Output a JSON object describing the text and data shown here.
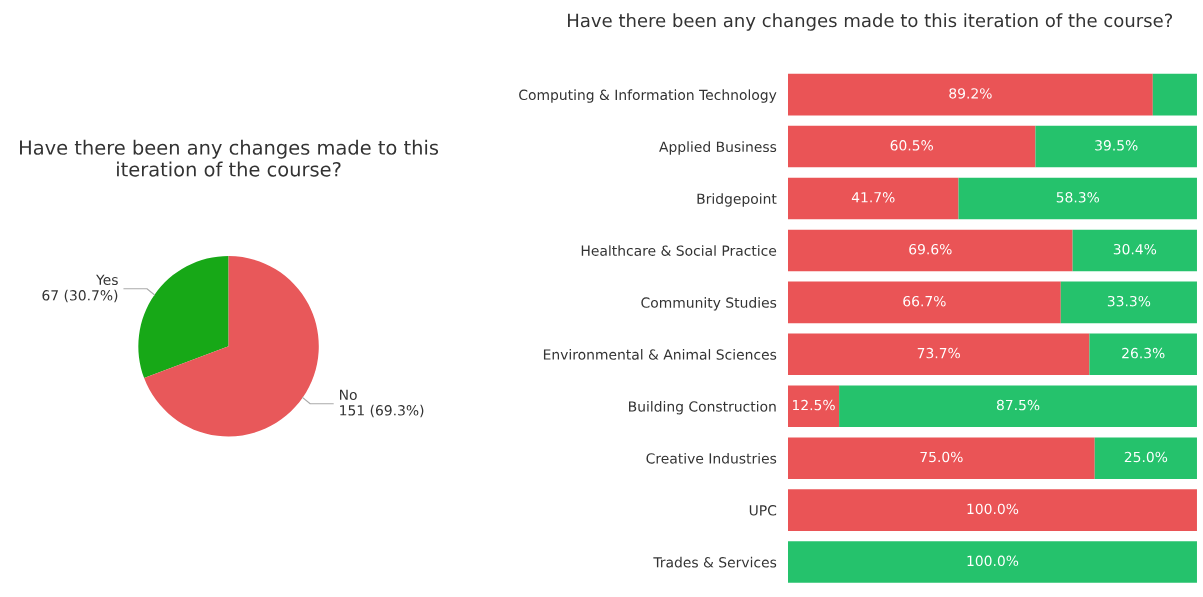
{
  "chart_data": [
    {
      "type": "pie",
      "title": "Have there been any changes made to this iteration of the course?",
      "categories": [
        "Yes",
        "No"
      ],
      "values": [
        67,
        151
      ],
      "colors": [
        "#17a817",
        "#e8585a"
      ],
      "value_labels": [
        "67 (30.7%)",
        "151 (69.3%)"
      ],
      "legend": false
    },
    {
      "type": "bar",
      "orientation": "horizontal",
      "stacked": true,
      "title": "Have there been any changes made to this iteration of the course?",
      "categories": [
        "Computing & Information Technology",
        "Applied Business",
        "Bridgepoint",
        "Healthcare & Social Practice",
        "Community Studies",
        "Environmental & Animal Sciences",
        "Building Construction",
        "Creative Industries",
        "UPC",
        "Trades & Services"
      ],
      "xlim": [
        0,
        100
      ],
      "tick_labels": "y",
      "grid": false,
      "legend": false,
      "series": [
        {
          "color": "#ea5456",
          "values": [
            89.2,
            60.5,
            41.7,
            69.6,
            66.7,
            73.7,
            12.5,
            75.0,
            100.0,
            0
          ],
          "value_labels": [
            "89.2%",
            "60.5%",
            "41.7%",
            "69.6%",
            "66.7%",
            "73.7%",
            "12.5%",
            "75.0%",
            "100.0%",
            null
          ]
        },
        {
          "color": "#25c26c",
          "values": [
            10.8,
            39.5,
            58.3,
            30.4,
            33.3,
            26.3,
            87.5,
            25.0,
            0,
            100.0
          ],
          "value_labels": [
            null,
            "39.5%",
            "58.3%",
            "30.4%",
            "33.3%",
            "26.3%",
            "87.5%",
            "25.0%",
            null,
            "100.0%"
          ]
        }
      ]
    }
  ]
}
